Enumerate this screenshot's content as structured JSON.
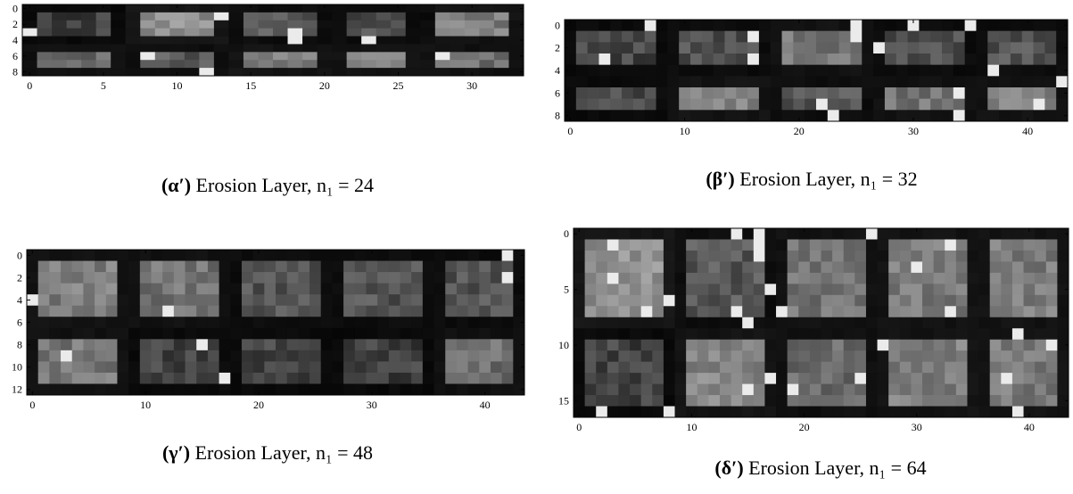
{
  "figure": {
    "panels": [
      {
        "caption": {
          "label": "(α′)",
          "text": "Erosion Layer, n₁ = 24"
        },
        "xlim": [
          -0.5,
          33.5
        ],
        "ylim": [
          8.5,
          -0.5
        ],
        "xticks": [
          0,
          5,
          10,
          15,
          20,
          25,
          30
        ],
        "yticks": [
          0,
          2,
          4,
          6,
          8
        ]
      },
      {
        "caption": {
          "label": "(β′)",
          "text": "Erosion Layer, n₁ = 32"
        },
        "xlim": [
          -0.5,
          43.5
        ],
        "ylim": [
          8.5,
          -0.5
        ],
        "xticks": [
          0,
          10,
          20,
          30,
          40
        ],
        "yticks": [
          0,
          2,
          4,
          6,
          8
        ]
      },
      {
        "caption": {
          "label": "(γ′)",
          "text": "Erosion Layer, n₁ = 48"
        },
        "xlim": [
          -0.5,
          43.5
        ],
        "ylim": [
          12.5,
          -0.5
        ],
        "xticks": [
          0,
          10,
          20,
          30,
          40
        ],
        "yticks": [
          0,
          2,
          4,
          6,
          8,
          10,
          12
        ]
      },
      {
        "caption": {
          "label": "(δ′)",
          "text": "Erosion Layer, n₁ = 64"
        },
        "xlim": [
          -0.5,
          43.5
        ],
        "ylim": [
          16.5,
          -0.5
        ],
        "xticks": [
          0,
          10,
          20,
          30,
          40
        ],
        "yticks": [
          0,
          5,
          10,
          15
        ]
      }
    ]
  }
}
